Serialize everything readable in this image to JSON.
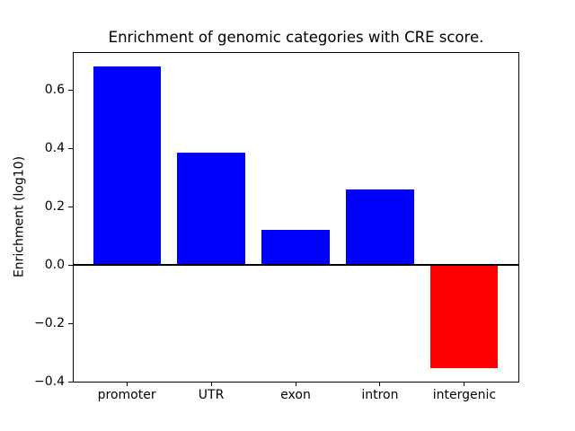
{
  "figure": {
    "background": "#ffffff"
  },
  "chart_data": {
    "type": "bar",
    "title": "Enrichment of genomic categories with CRE score.",
    "xlabel": "",
    "ylabel": "Enrichment (log10)",
    "categories": [
      "promoter",
      "UTR",
      "exon",
      "intron",
      "intergenic"
    ],
    "values": [
      0.68,
      0.385,
      0.12,
      0.26,
      -0.355
    ],
    "bar_colors": [
      "#0000ff",
      "#0000ff",
      "#0000ff",
      "#0000ff",
      "#ff0000"
    ],
    "positive_color": "#0000ff",
    "negative_color": "#ff0000",
    "axis_color": "#000000",
    "text_color": "#000000",
    "background_color": "#ffffff",
    "ylim": [
      -0.4,
      0.73
    ],
    "yticks": [
      0.6,
      0.4,
      0.2,
      0.0,
      -0.2,
      -0.4
    ],
    "ytick_labels": [
      "0.6",
      "0.4",
      "0.2",
      "0.0",
      "−0.2",
      "−0.4"
    ],
    "xlim": [
      -0.64,
      4.64
    ],
    "bar_width_fraction": 0.8,
    "grid": false,
    "legend": "none",
    "zero_line": true
  }
}
